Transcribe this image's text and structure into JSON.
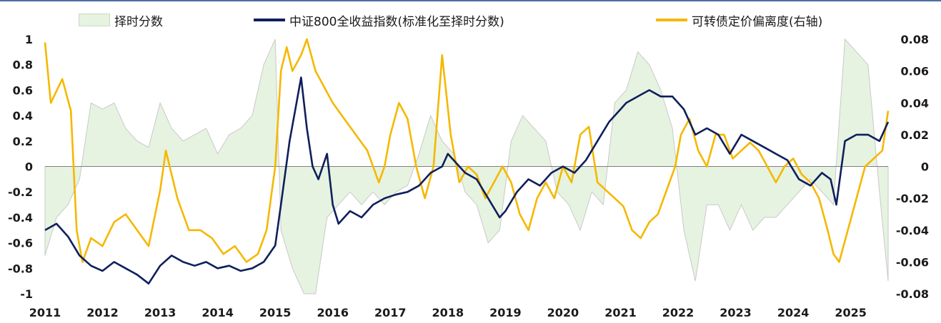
{
  "legend": {
    "score": "择时分数",
    "index": "中证800全收益指数(标准化至择时分数)",
    "deviation": "可转债定价偏离度(右轴)"
  },
  "colors": {
    "score_fill": "#e6f3e1",
    "score_line": "#c9c9c9",
    "index_line": "#0f1f5c",
    "deviation_line": "#f5b800"
  },
  "chart_data": {
    "type": "line",
    "x_ticks": [
      "2011",
      "2012",
      "2013",
      "2014",
      "2015",
      "2016",
      "2017",
      "2018",
      "2019",
      "2020",
      "2021",
      "2022",
      "2023",
      "2024",
      "2025"
    ],
    "y_left": {
      "min": -1,
      "max": 1,
      "ticks": [
        "1",
        "0.8",
        "0.6",
        "0.4",
        "0.2",
        "0",
        "-0.2",
        "-0.4",
        "-0.6",
        "-0.8",
        "-1"
      ]
    },
    "y_right": {
      "min": -0.08,
      "max": 0.08,
      "ticks": [
        "0.08",
        "0.06",
        "0.04",
        "0.02",
        "0",
        "-0.02",
        "-0.04",
        "-0.06",
        "-0.08"
      ]
    },
    "grid": false,
    "legend_position": "top",
    "series": [
      {
        "name": "择时分数",
        "type": "area",
        "axis": "left",
        "x": [
          2011.0,
          2011.2,
          2011.4,
          2011.6,
          2011.8,
          2012.0,
          2012.2,
          2012.4,
          2012.6,
          2012.8,
          2013.0,
          2013.2,
          2013.4,
          2013.6,
          2013.8,
          2014.0,
          2014.2,
          2014.4,
          2014.6,
          2014.8,
          2015.0,
          2015.1,
          2015.3,
          2015.5,
          2015.7,
          2015.9,
          2016.1,
          2016.3,
          2016.5,
          2016.7,
          2016.9,
          2017.1,
          2017.3,
          2017.5,
          2017.7,
          2017.9,
          2018.1,
          2018.3,
          2018.5,
          2018.7,
          2018.9,
          2019.1,
          2019.3,
          2019.5,
          2019.7,
          2019.9,
          2020.1,
          2020.3,
          2020.5,
          2020.7,
          2020.9,
          2021.1,
          2021.3,
          2021.5,
          2021.7,
          2021.9,
          2022.1,
          2022.3,
          2022.5,
          2022.7,
          2022.9,
          2023.1,
          2023.3,
          2023.5,
          2023.7,
          2023.9,
          2024.1,
          2024.3,
          2024.5,
          2024.7,
          2024.9,
          2025.1,
          2025.3,
          2025.5,
          2025.65
        ],
        "values": [
          -0.7,
          -0.4,
          -0.3,
          -0.1,
          0.5,
          0.45,
          0.5,
          0.3,
          0.2,
          0.15,
          0.5,
          0.3,
          0.2,
          0.25,
          0.3,
          0.1,
          0.25,
          0.3,
          0.4,
          0.8,
          1.0,
          -0.5,
          -0.8,
          -1.0,
          -1.0,
          -0.4,
          -0.3,
          -0.2,
          -0.3,
          -0.2,
          -0.3,
          -0.2,
          -0.15,
          0.1,
          0.4,
          0.2,
          0.1,
          -0.2,
          -0.3,
          -0.6,
          -0.5,
          0.2,
          0.4,
          0.3,
          0.2,
          -0.2,
          -0.3,
          -0.5,
          -0.2,
          -0.3,
          0.5,
          0.6,
          0.9,
          0.8,
          0.6,
          0.3,
          -0.5,
          -0.9,
          -0.3,
          -0.3,
          -0.5,
          -0.3,
          -0.5,
          -0.4,
          -0.4,
          -0.3,
          -0.2,
          -0.1,
          -0.2,
          -0.3,
          1.0,
          0.9,
          0.8,
          -0.2,
          -0.9
        ]
      },
      {
        "name": "中证800全收益指数(标准化至择时分数)",
        "axis": "left",
        "x": [
          2011.0,
          2011.2,
          2011.4,
          2011.6,
          2011.8,
          2012.0,
          2012.2,
          2012.4,
          2012.6,
          2012.8,
          2013.0,
          2013.2,
          2013.4,
          2013.6,
          2013.8,
          2014.0,
          2014.2,
          2014.4,
          2014.6,
          2014.8,
          2015.0,
          2015.1,
          2015.25,
          2015.35,
          2015.45,
          2015.55,
          2015.65,
          2015.75,
          2015.9,
          2016.0,
          2016.1,
          2016.3,
          2016.5,
          2016.7,
          2016.9,
          2017.1,
          2017.3,
          2017.5,
          2017.7,
          2017.9,
          2018.0,
          2018.1,
          2018.3,
          2018.5,
          2018.7,
          2018.9,
          2019.0,
          2019.2,
          2019.4,
          2019.6,
          2019.8,
          2020.0,
          2020.2,
          2020.4,
          2020.6,
          2020.8,
          2021.0,
          2021.1,
          2021.3,
          2021.5,
          2021.7,
          2021.9,
          2022.1,
          2022.3,
          2022.5,
          2022.7,
          2022.9,
          2023.1,
          2023.3,
          2023.5,
          2023.7,
          2023.9,
          2024.1,
          2024.3,
          2024.5,
          2024.65,
          2024.75,
          2024.9,
          2025.1,
          2025.3,
          2025.5,
          2025.65
        ],
        "values": [
          -0.5,
          -0.45,
          -0.55,
          -0.7,
          -0.78,
          -0.82,
          -0.75,
          -0.8,
          -0.85,
          -0.92,
          -0.78,
          -0.7,
          -0.75,
          -0.78,
          -0.75,
          -0.8,
          -0.78,
          -0.82,
          -0.8,
          -0.75,
          -0.62,
          -0.3,
          0.2,
          0.45,
          0.7,
          0.3,
          0.0,
          -0.1,
          0.1,
          -0.3,
          -0.45,
          -0.35,
          -0.4,
          -0.3,
          -0.25,
          -0.22,
          -0.2,
          -0.15,
          -0.05,
          0.0,
          0.1,
          0.05,
          -0.05,
          -0.1,
          -0.25,
          -0.4,
          -0.35,
          -0.2,
          -0.1,
          -0.15,
          -0.05,
          0.0,
          -0.05,
          0.05,
          0.2,
          0.35,
          0.45,
          0.5,
          0.55,
          0.6,
          0.55,
          0.55,
          0.45,
          0.25,
          0.3,
          0.25,
          0.1,
          0.25,
          0.2,
          0.15,
          0.1,
          0.05,
          -0.1,
          -0.15,
          -0.05,
          -0.1,
          -0.3,
          0.2,
          0.25,
          0.25,
          0.2,
          0.35
        ]
      },
      {
        "name": "可转债定价偏离度(右轴)",
        "axis": "right",
        "x": [
          2011.0,
          2011.1,
          2011.3,
          2011.45,
          2011.55,
          2011.65,
          2011.8,
          2012.0,
          2012.2,
          2012.4,
          2012.6,
          2012.8,
          2013.0,
          2013.1,
          2013.2,
          2013.3,
          2013.5,
          2013.7,
          2013.9,
          2014.1,
          2014.3,
          2014.5,
          2014.7,
          2014.85,
          2015.0,
          2015.1,
          2015.2,
          2015.3,
          2015.45,
          2015.55,
          2015.7,
          2015.85,
          2016.0,
          2016.2,
          2016.4,
          2016.6,
          2016.8,
          2016.9,
          2017.0,
          2017.15,
          2017.3,
          2017.45,
          2017.6,
          2017.75,
          2017.9,
          2018.05,
          2018.2,
          2018.35,
          2018.5,
          2018.65,
          2018.8,
          2018.95,
          2019.1,
          2019.25,
          2019.4,
          2019.55,
          2019.7,
          2019.85,
          2020.0,
          2020.15,
          2020.3,
          2020.45,
          2020.6,
          2020.75,
          2020.9,
          2021.05,
          2021.2,
          2021.35,
          2021.5,
          2021.65,
          2021.8,
          2021.95,
          2022.05,
          2022.2,
          2022.35,
          2022.5,
          2022.65,
          2022.8,
          2022.95,
          2023.1,
          2023.25,
          2023.4,
          2023.55,
          2023.7,
          2023.85,
          2024.0,
          2024.15,
          2024.3,
          2024.45,
          2024.6,
          2024.7,
          2024.8,
          2024.95,
          2025.1,
          2025.25,
          2025.4,
          2025.55,
          2025.65
        ],
        "values": [
          0.078,
          0.04,
          0.055,
          0.035,
          -0.04,
          -0.06,
          -0.045,
          -0.05,
          -0.035,
          -0.03,
          -0.04,
          -0.05,
          -0.015,
          0.01,
          -0.005,
          -0.02,
          -0.04,
          -0.04,
          -0.045,
          -0.055,
          -0.05,
          -0.06,
          -0.055,
          -0.04,
          0.0,
          0.06,
          0.075,
          0.06,
          0.07,
          0.08,
          0.06,
          0.05,
          0.04,
          0.03,
          0.02,
          0.01,
          -0.01,
          0.0,
          0.02,
          0.04,
          0.03,
          0.0,
          -0.02,
          0.0,
          0.07,
          0.02,
          -0.01,
          0.0,
          -0.005,
          -0.02,
          -0.01,
          0.0,
          -0.01,
          -0.03,
          -0.04,
          -0.02,
          -0.01,
          -0.02,
          0.0,
          -0.01,
          0.02,
          0.025,
          -0.01,
          -0.015,
          -0.02,
          -0.025,
          -0.04,
          -0.045,
          -0.035,
          -0.03,
          -0.015,
          0.0,
          0.02,
          0.03,
          0.01,
          0.0,
          0.02,
          0.02,
          0.005,
          0.01,
          0.015,
          0.01,
          0.0,
          -0.01,
          0.0,
          0.005,
          -0.005,
          -0.01,
          -0.02,
          -0.04,
          -0.055,
          -0.06,
          -0.04,
          -0.02,
          0.0,
          0.005,
          0.01,
          0.035
        ]
      }
    ]
  }
}
